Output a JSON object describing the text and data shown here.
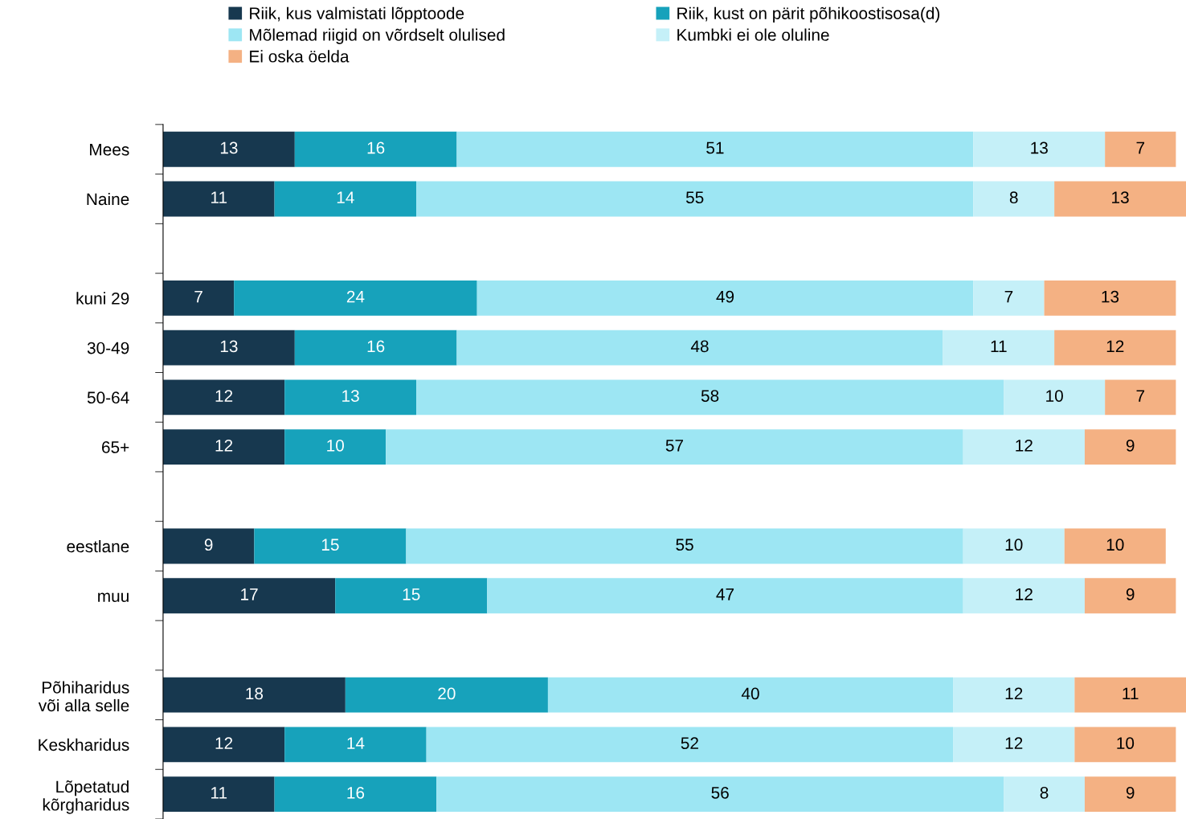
{
  "chart_data": {
    "type": "bar",
    "orientation": "horizontal",
    "stacked": true,
    "data_labels": true,
    "legend": "top",
    "grid": false,
    "xlim": [
      0,
      101
    ],
    "categories": [
      "Mees",
      "Naine",
      null,
      "kuni 29",
      "30-49",
      "50-64",
      "65+",
      null,
      "eestlane",
      "muu",
      null,
      "Põhiharidus\nvõi alla selle",
      "Keskharidus",
      "Lõpetatud\nkõrgharidus"
    ],
    "series": [
      {
        "name": "Riik, kus valmistati lõpptoode",
        "color": "#17384f",
        "values": [
          13,
          11,
          null,
          7,
          13,
          12,
          12,
          null,
          9,
          17,
          null,
          18,
          12,
          11
        ]
      },
      {
        "name": "Riik, kust on pärit põhikoostisosa(d)",
        "color": "#17a2bb",
        "values": [
          16,
          14,
          null,
          24,
          16,
          13,
          10,
          null,
          15,
          15,
          null,
          20,
          14,
          16
        ]
      },
      {
        "name": "Mõlemad riigid on võrdselt olulised",
        "color": "#9de6f3",
        "values": [
          51,
          55,
          null,
          49,
          48,
          58,
          57,
          null,
          55,
          47,
          null,
          40,
          52,
          56
        ]
      },
      {
        "name": "Kumbki ei ole oluline",
        "color": "#c5f0f8",
        "values": [
          13,
          8,
          null,
          7,
          11,
          10,
          12,
          null,
          10,
          12,
          null,
          12,
          12,
          8
        ]
      },
      {
        "name": "Ei oska öelda",
        "color": "#f4b183",
        "values": [
          7,
          13,
          null,
          13,
          12,
          7,
          9,
          null,
          10,
          9,
          null,
          11,
          10,
          9
        ]
      }
    ]
  }
}
